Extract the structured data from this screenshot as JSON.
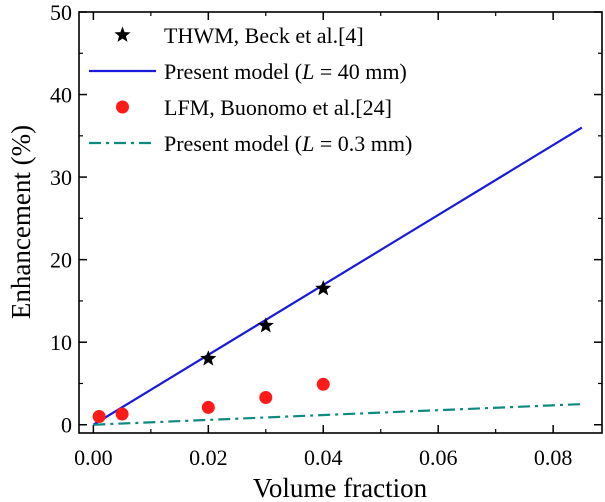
{
  "chart_data": {
    "type": "scatter",
    "title": "",
    "xlabel": "Volume fraction",
    "ylabel": "Enhancement (%)",
    "xlim": [
      -0.0025,
      0.0885
    ],
    "ylim": [
      -1,
      50
    ],
    "xticks": [
      0.0,
      0.02,
      0.04,
      0.06,
      0.08
    ],
    "xtick_labels": [
      "0.00",
      "0.02",
      "0.04",
      "0.06",
      "0.08"
    ],
    "yticks": [
      0,
      10,
      20,
      30,
      40,
      50
    ],
    "ytick_labels": [
      "0",
      "10",
      "20",
      "30",
      "40",
      "50"
    ],
    "grid": false,
    "legend_position": "top-left",
    "series": [
      {
        "name": "THWM, Beck et al.[4]",
        "kind": "scatter",
        "marker": "star",
        "color": "#000000",
        "x": [
          0.02,
          0.03,
          0.04
        ],
        "y": [
          8.0,
          12.0,
          16.5
        ]
      },
      {
        "name": "Present model (L = 40 mm)",
        "name_parts": [
          "Present model (",
          "L",
          " = 40 mm)"
        ],
        "kind": "line",
        "style": "solid",
        "color": "#1a1adb",
        "x": [
          0.0,
          0.085
        ],
        "y": [
          0.0,
          36.0
        ]
      },
      {
        "name": "LFM, Buonomo et al.[24]",
        "kind": "scatter",
        "marker": "circle",
        "color": "#ff1a1a",
        "x": [
          0.001,
          0.005,
          0.02,
          0.03,
          0.04
        ],
        "y": [
          1.0,
          1.3,
          2.1,
          3.3,
          4.9
        ]
      },
      {
        "name": "Present model (L = 0.3 mm)",
        "name_parts": [
          "Present model (",
          "L",
          " = 0.3 mm)"
        ],
        "kind": "line",
        "style": "dashdot",
        "color": "#0f8a80",
        "x": [
          0.0,
          0.085
        ],
        "y": [
          0.0,
          2.5
        ]
      }
    ]
  }
}
